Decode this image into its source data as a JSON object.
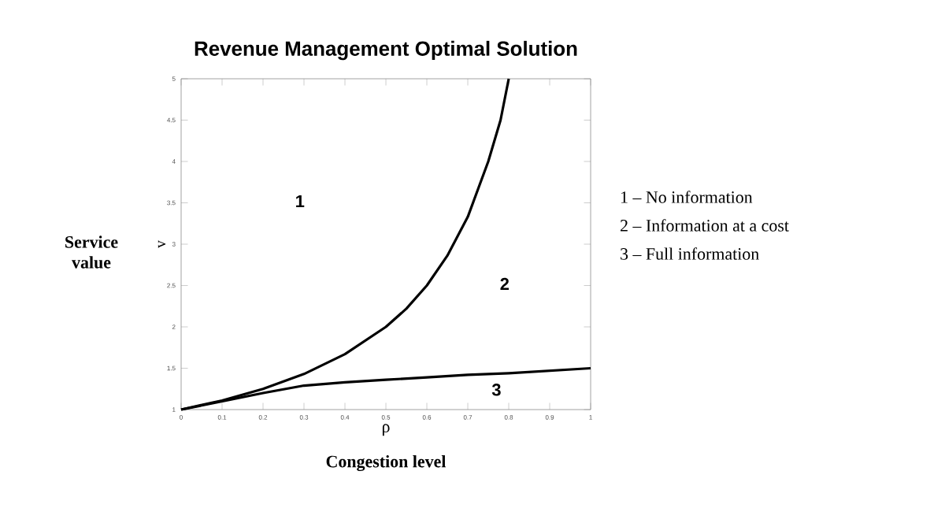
{
  "chart_data": {
    "type": "line",
    "title": "Revenue Management Optimal Solution",
    "xlabel": "ρ",
    "ylabel": "v",
    "xlim": [
      0,
      1
    ],
    "ylim": [
      1,
      5
    ],
    "xticks": [
      0,
      0.1,
      0.2,
      0.3,
      0.4,
      0.5,
      0.6,
      0.7,
      0.8,
      0.9,
      1
    ],
    "yticks": [
      1,
      1.5,
      2,
      2.5,
      3,
      3.5,
      4,
      4.5,
      5
    ],
    "series": [
      {
        "color": "#000000",
        "x": [
          0,
          0.1,
          0.2,
          0.3,
          0.4,
          0.5,
          0.55,
          0.6,
          0.65,
          0.7,
          0.75,
          0.78,
          0.8
        ],
        "values": [
          1,
          1.11,
          1.25,
          1.43,
          1.67,
          2,
          2.22,
          2.5,
          2.86,
          3.33,
          4,
          4.5,
          5
        ]
      },
      {
        "color": "#000000",
        "x": [
          0,
          0.1,
          0.2,
          0.3,
          0.4,
          0.5,
          0.6,
          0.7,
          0.8,
          0.9,
          1
        ],
        "values": [
          1,
          1.1,
          1.2,
          1.29,
          1.33,
          1.36,
          1.39,
          1.42,
          1.44,
          1.47,
          1.5
        ]
      }
    ],
    "line_style": "solid",
    "marker": "none",
    "grid": false,
    "annotations": [
      "1",
      "2",
      "3",
      "Service value",
      "Congestion level",
      "1 – No information",
      "2 – Information at a cost",
      "3 – Full information"
    ]
  }
}
